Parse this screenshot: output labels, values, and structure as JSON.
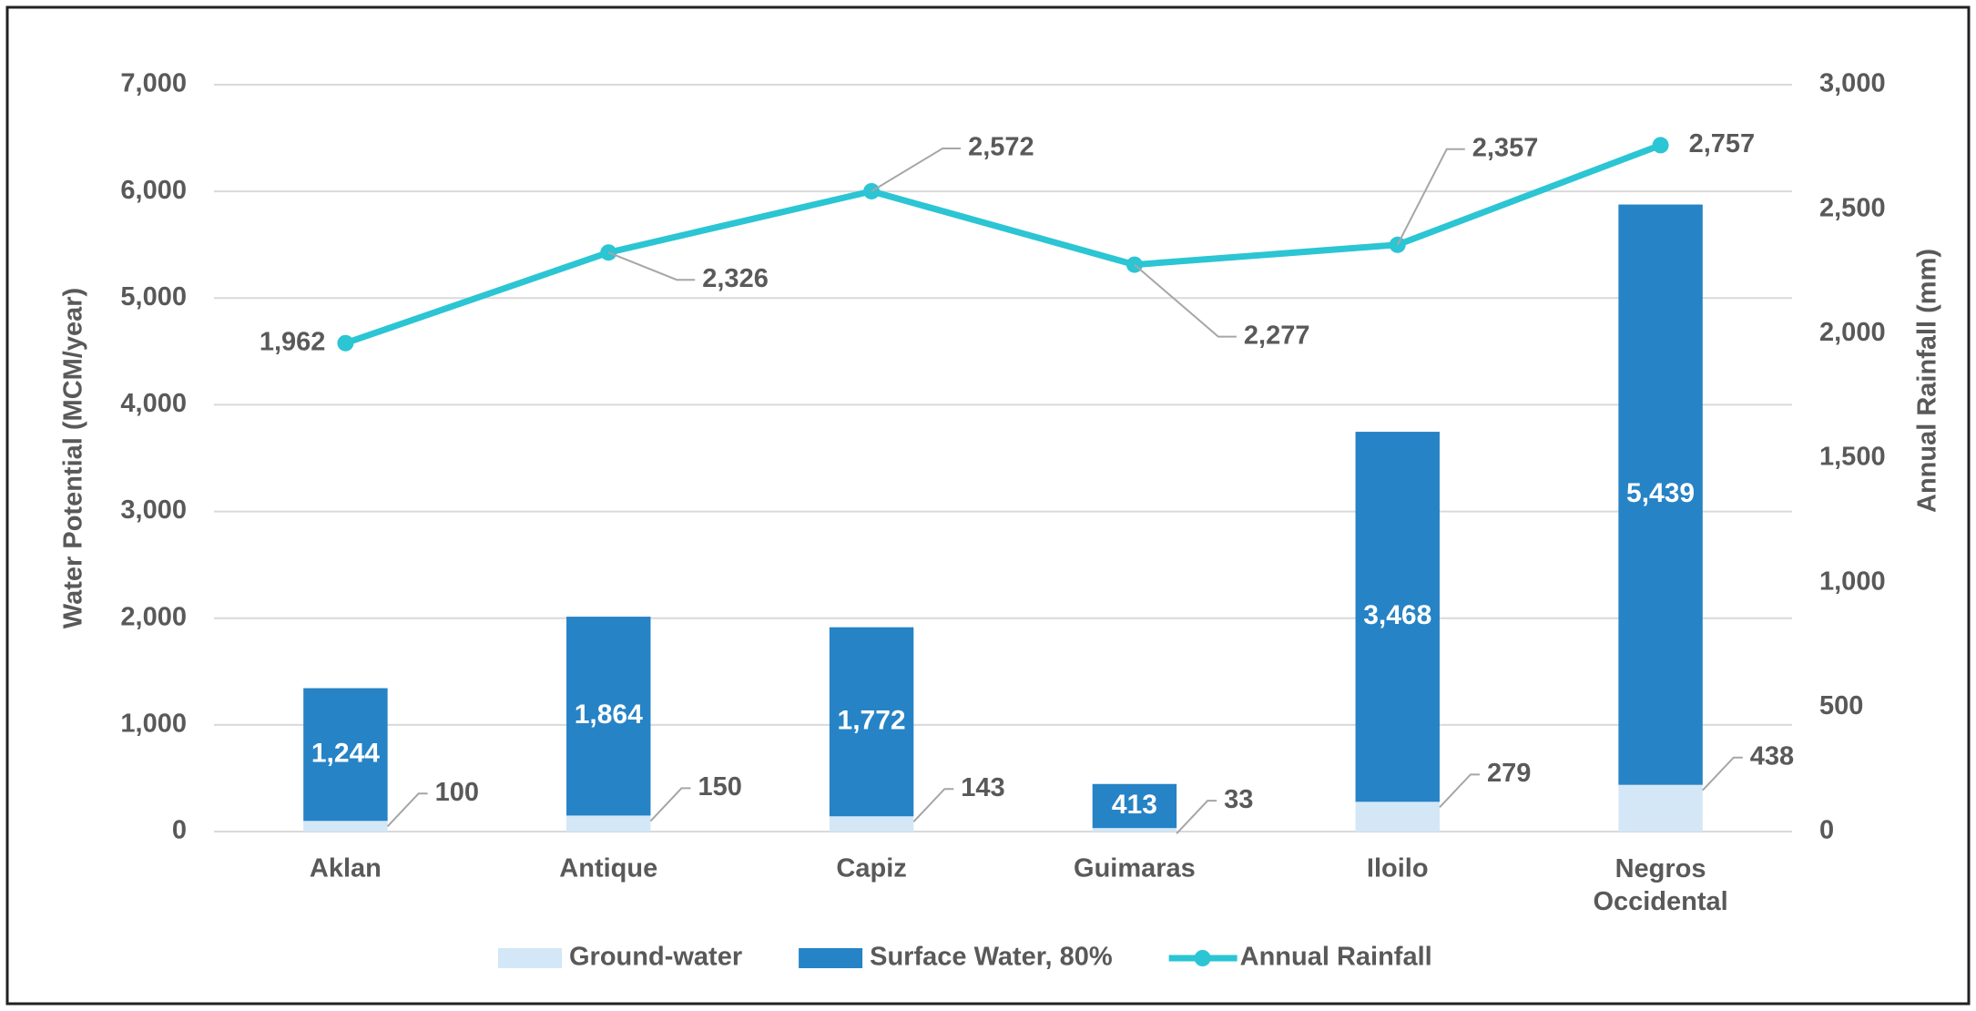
{
  "chart_data": {
    "type": "bar-line",
    "y_label": "Water Potential (MCM/year)",
    "y2_label": "Annual Rainfall (mm)",
    "categories": [
      "Aklan",
      "Antique",
      "Capiz",
      "Guimaras",
      "Iloilo",
      "Negros Occidental"
    ],
    "series": [
      {
        "name": "Ground-water",
        "type": "bar",
        "color": "#d3e7f6",
        "values": [
          100,
          150,
          143,
          33,
          279,
          438
        ]
      },
      {
        "name": "Surface Water, 80%",
        "type": "bar",
        "color": "#2683c6",
        "values": [
          1244,
          1864,
          1772,
          413,
          3468,
          5439
        ],
        "value_labels": [
          "1,244",
          "1,864",
          "1,772",
          "413",
          "3,468",
          "5,439"
        ]
      },
      {
        "name": "Annual Rainfall",
        "type": "line",
        "axis": "y2",
        "color": "#2bc5d4",
        "values": [
          1962,
          2326,
          2572,
          2277,
          2357,
          2757
        ],
        "value_labels": [
          "1,962",
          "2,326",
          "2,572",
          "2,277",
          "2,357",
          "2,757"
        ]
      }
    ],
    "stacked": true,
    "ylim": [
      0,
      7000
    ],
    "yticks": [
      0,
      {
        "value": 1000,
        "label": "1,000"
      },
      {
        "value": 2000,
        "label": "2,000"
      },
      {
        "value": 3000,
        "label": "3,000"
      },
      {
        "value": 4000,
        "label": "4,000"
      },
      {
        "value": 5000,
        "label": "5,000"
      },
      {
        "value": 6000,
        "label": "6,000"
      },
      {
        "value": 7000,
        "label": "7,000"
      }
    ],
    "y2lim": [
      0,
      3000
    ],
    "y2ticks": [
      0,
      500,
      {
        "value": 1000,
        "label": "1,000"
      },
      {
        "value": 1500,
        "label": "1,500"
      },
      {
        "value": 2000,
        "label": "2,000"
      },
      {
        "value": 2500,
        "label": "2,500"
      },
      {
        "value": 3000,
        "label": "3,000"
      }
    ],
    "grid": true,
    "legend": "bottom"
  }
}
